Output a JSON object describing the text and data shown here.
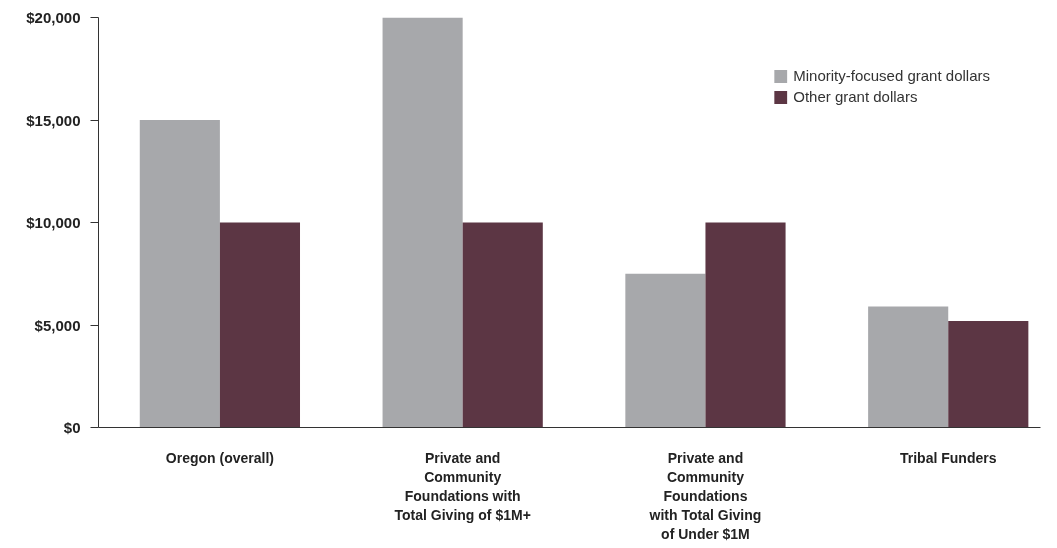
{
  "chart_data": {
    "type": "bar",
    "categories": [
      "Oregon (overall)",
      "Private and\nCommunity\nFoundations with\nTotal Giving of $1M+",
      "Private and\nCommunity\nFoundations\nwith Total Giving\nof Under $1M",
      "Tribal Funders"
    ],
    "series": [
      {
        "name": "Minority-focused grant dollars",
        "color": "#a7a8ab",
        "values": [
          15000,
          20000,
          7500,
          5900
        ]
      },
      {
        "name": "Other grant dollars",
        "color": "#5c3644",
        "values": [
          10000,
          10000,
          10000,
          5200
        ]
      }
    ],
    "ylim": [
      0,
      20000
    ],
    "yticks": [
      {
        "value": 0,
        "label": "$0"
      },
      {
        "value": 5000,
        "label": "$5,000"
      },
      {
        "value": 10000,
        "label": "$10,000"
      },
      {
        "value": 15000,
        "label": "$15,000"
      },
      {
        "value": 20000,
        "label": "$20,000"
      }
    ],
    "grid": false,
    "legend": "top right"
  }
}
